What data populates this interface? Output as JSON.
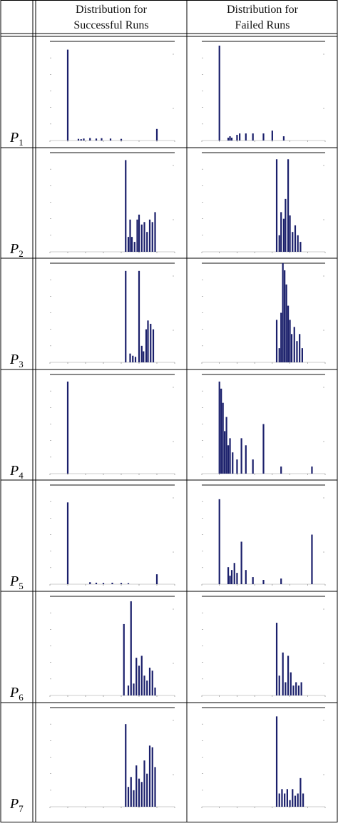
{
  "header": {
    "col_successful": [
      "Distribution for",
      "Successful Runs"
    ],
    "col_failed": [
      "Distribution for",
      "Failed Runs"
    ]
  },
  "rows": [
    {
      "label": "P",
      "sub": "1"
    },
    {
      "label": "P",
      "sub": "2"
    },
    {
      "label": "P",
      "sub": "3"
    },
    {
      "label": "P",
      "sub": "4"
    },
    {
      "label": "P",
      "sub": "5"
    },
    {
      "label": "P",
      "sub": "6"
    },
    {
      "label": "P",
      "sub": "7"
    }
  ],
  "colors": {
    "bar": "#1a1f6b",
    "frame": "#111111",
    "border": "#000000"
  },
  "chart_data": [
    {
      "type": "bar",
      "row": "P1",
      "panel": "successful",
      "xlim": [
        -0.2,
        1.2
      ],
      "ylim": [
        0,
        600
      ],
      "x": [
        0.0,
        0.12,
        0.15,
        0.18,
        0.25,
        0.32,
        0.38,
        0.48,
        0.6,
        1.0
      ],
      "values": [
        550,
        10,
        8,
        12,
        15,
        12,
        14,
        12,
        10,
        70
      ]
    },
    {
      "type": "bar",
      "row": "P1",
      "panel": "failed",
      "xlim": [
        -0.2,
        1.2
      ],
      "ylim": [
        0,
        70
      ],
      "x": [
        0.0,
        0.1,
        0.12,
        0.14,
        0.2,
        0.23,
        0.3,
        0.38,
        0.5,
        0.6,
        0.73
      ],
      "values": [
        67,
        2,
        3,
        2,
        4,
        5,
        5,
        5,
        5,
        7,
        3
      ]
    },
    {
      "type": "bar",
      "row": "P2",
      "panel": "successful",
      "xlim": [
        -0.2,
        1.2
      ],
      "ylim": [
        0,
        40
      ],
      "x": [
        0.65,
        0.68,
        0.7,
        0.72,
        0.75,
        0.78,
        0.8,
        0.83,
        0.86,
        0.89,
        0.92,
        0.95,
        0.98
      ],
      "values": [
        37,
        6,
        13,
        6,
        4,
        13,
        15,
        11,
        12,
        8,
        13,
        12,
        16
      ]
    },
    {
      "type": "bar",
      "row": "P2",
      "panel": "failed",
      "xlim": [
        -0.2,
        1.2
      ],
      "ylim": [
        0,
        30
      ],
      "x": [
        0.65,
        0.68,
        0.7,
        0.73,
        0.75,
        0.78,
        0.8,
        0.83,
        0.86,
        0.89,
        0.92
      ],
      "values": [
        28,
        5,
        12,
        10,
        16,
        28,
        11,
        6,
        8,
        5,
        3
      ]
    },
    {
      "type": "bar",
      "row": "P3",
      "panel": "successful",
      "xlim": [
        -0.2,
        1.2
      ],
      "ylim": [
        0,
        90
      ],
      "x": [
        0.65,
        0.7,
        0.73,
        0.76,
        0.8,
        0.83,
        0.85,
        0.88,
        0.9,
        0.93,
        0.96
      ],
      "values": [
        83,
        8,
        6,
        5,
        83,
        15,
        10,
        30,
        38,
        35,
        30
      ]
    },
    {
      "type": "bar",
      "row": "P3",
      "panel": "failed",
      "xlim": [
        -0.2,
        1.2
      ],
      "ylim": [
        0,
        14
      ],
      "x": [
        0.65,
        0.68,
        0.7,
        0.72,
        0.74,
        0.76,
        0.78,
        0.8,
        0.82,
        0.85,
        0.88,
        0.91,
        0.94
      ],
      "values": [
        6,
        2,
        7,
        14,
        13,
        11,
        8,
        6,
        4,
        5,
        3,
        4,
        2
      ]
    },
    {
      "type": "bar",
      "row": "P4",
      "panel": "successful",
      "xlim": [
        -0.2,
        1.2
      ],
      "ylim": [
        0,
        1400
      ],
      "x": [
        0.0
      ],
      "values": [
        1300
      ]
    },
    {
      "type": "bar",
      "row": "P4",
      "panel": "failed",
      "xlim": [
        -0.2,
        1.2
      ],
      "ylim": [
        0,
        14
      ],
      "x": [
        0.0,
        0.02,
        0.04,
        0.06,
        0.08,
        0.1,
        0.12,
        0.15,
        0.2,
        0.25,
        0.3,
        0.38,
        0.5,
        0.7,
        1.05
      ],
      "values": [
        13,
        12,
        10,
        6,
        8,
        4,
        5,
        3,
        2,
        5,
        4,
        2,
        7,
        1,
        1
      ]
    },
    {
      "type": "bar",
      "row": "P5",
      "panel": "successful",
      "xlim": [
        -0.2,
        1.2
      ],
      "ylim": [
        0,
        400
      ],
      "x": [
        0.0,
        0.25,
        0.32,
        0.4,
        0.5,
        0.6,
        0.68,
        1.0
      ],
      "values": [
        330,
        8,
        6,
        5,
        6,
        5,
        4,
        40
      ]
    },
    {
      "type": "bar",
      "row": "P5",
      "panel": "failed",
      "xlim": [
        -0.2,
        1.2
      ],
      "ylim": [
        0,
        70
      ],
      "x": [
        0.0,
        0.1,
        0.12,
        0.14,
        0.17,
        0.2,
        0.25,
        0.3,
        0.38,
        0.5,
        0.7,
        1.05
      ],
      "values": [
        60,
        12,
        6,
        10,
        15,
        8,
        30,
        10,
        5,
        3,
        4,
        35
      ]
    },
    {
      "type": "bar",
      "row": "P6",
      "panel": "successful",
      "xlim": [
        -0.2,
        1.2
      ],
      "ylim": [
        0,
        100
      ],
      "x": [
        0.63,
        0.68,
        0.71,
        0.74,
        0.77,
        0.8,
        0.83,
        0.86,
        0.89,
        0.92,
        0.95,
        0.98
      ],
      "values": [
        72,
        10,
        95,
        12,
        38,
        30,
        40,
        20,
        15,
        28,
        25,
        8
      ]
    },
    {
      "type": "bar",
      "row": "P6",
      "panel": "failed",
      "xlim": [
        -0.2,
        1.2
      ],
      "ylim": [
        0,
        30
      ],
      "x": [
        0.65,
        0.68,
        0.72,
        0.75,
        0.78,
        0.81,
        0.84,
        0.87,
        0.9,
        0.93
      ],
      "values": [
        22,
        6,
        13,
        4,
        12,
        7,
        3,
        4,
        3,
        4
      ]
    },
    {
      "type": "bar",
      "row": "P7",
      "panel": "successful",
      "xlim": [
        -0.2,
        1.2
      ],
      "ylim": [
        0,
        60
      ],
      "x": [
        0.65,
        0.68,
        0.71,
        0.74,
        0.77,
        0.8,
        0.83,
        0.86,
        0.89,
        0.92,
        0.95,
        0.98
      ],
      "values": [
        50,
        12,
        18,
        10,
        25,
        17,
        15,
        28,
        20,
        37,
        36,
        24
      ]
    },
    {
      "type": "bar",
      "row": "P7",
      "panel": "failed",
      "xlim": [
        -0.2,
        1.2
      ],
      "ylim": [
        0,
        45
      ],
      "x": [
        0.65,
        0.68,
        0.71,
        0.74,
        0.77,
        0.8,
        0.83,
        0.86,
        0.89,
        0.92,
        0.95
      ],
      "values": [
        41,
        6,
        8,
        6,
        8,
        3,
        8,
        5,
        6,
        13,
        6
      ]
    }
  ]
}
